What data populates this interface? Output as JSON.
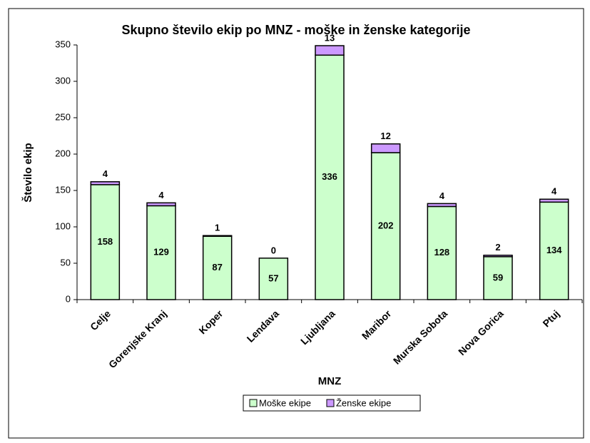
{
  "chart_data": {
    "type": "stacked_bar",
    "title": "Skupno število ekip po MNZ - moške in ženske kategorije",
    "x_label": "MNZ",
    "y_label": "Število ekip",
    "categories": [
      "Celje",
      "Gorenjske Kranj",
      "Koper",
      "Lendava",
      "Ljubljana",
      "Maribor",
      "Murska Sobota",
      "Nova Gorica",
      "Ptuj"
    ],
    "series": [
      {
        "name": "Moške ekipe",
        "color": "#ccffcc",
        "values": [
          158,
          129,
          87,
          57,
          336,
          202,
          128,
          59,
          134
        ]
      },
      {
        "name": "Ženske ekipe",
        "color": "#cc99ff",
        "values": [
          4,
          4,
          1,
          0,
          13,
          12,
          4,
          2,
          4
        ]
      }
    ],
    "ylim": [
      0,
      350
    ],
    "yticks": [
      0,
      50,
      100,
      150,
      200,
      250,
      300,
      350
    ],
    "grid": false,
    "legend": "bottom"
  }
}
